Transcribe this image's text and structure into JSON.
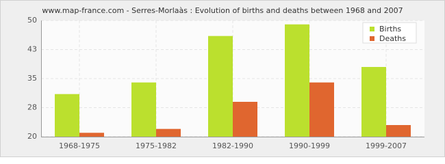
{
  "chart_data": {
    "type": "bar",
    "title": "www.map-france.com - Serres-Morlaàs : Evolution of births and deaths between 1968 and 2007",
    "categories": [
      "1968-1975",
      "1975-1982",
      "1982-1990",
      "1990-1999",
      "1999-2007"
    ],
    "series": [
      {
        "name": "Births",
        "color": "#bbe02e",
        "values": [
          31,
          34,
          46,
          49,
          38
        ]
      },
      {
        "name": "Deaths",
        "color": "#e0662f",
        "values": [
          21,
          22,
          29,
          34,
          23
        ]
      }
    ],
    "ylim": [
      20,
      50
    ],
    "yticks": [
      20,
      {
        "value": 27.5,
        "label": "28"
      },
      35,
      {
        "value": 42.5,
        "label": "43"
      },
      50
    ],
    "grid": true,
    "legend": "top-right"
  }
}
